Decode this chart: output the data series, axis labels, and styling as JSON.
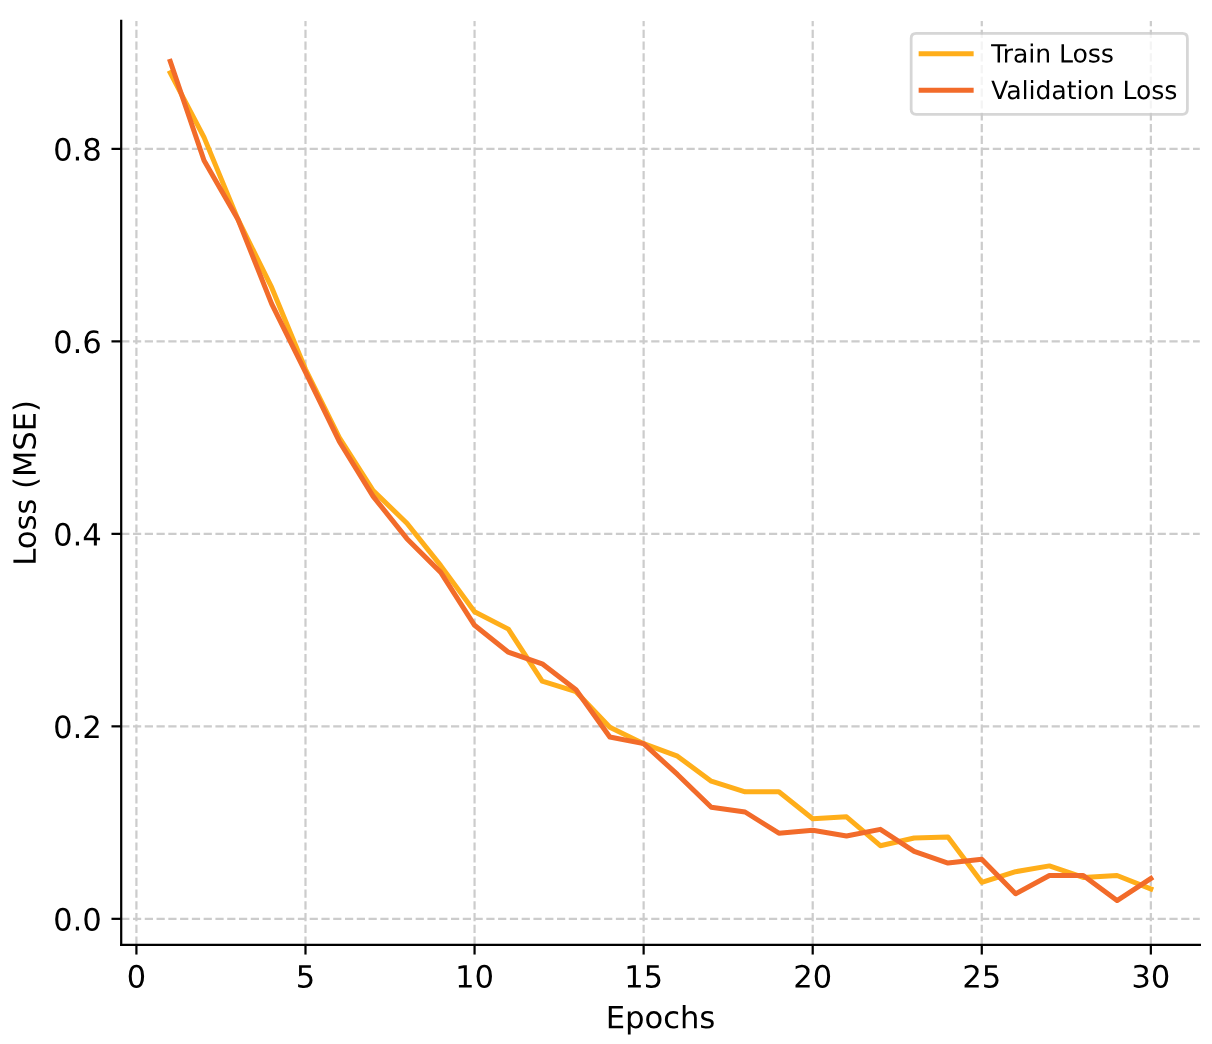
{
  "chart_data": {
    "type": "line",
    "xlabel": "Epochs",
    "ylabel": "Loss (MSE)",
    "x": [
      1,
      2,
      3,
      4,
      5,
      6,
      7,
      8,
      9,
      10,
      11,
      12,
      13,
      14,
      15,
      16,
      17,
      18,
      19,
      20,
      21,
      22,
      23,
      24,
      25,
      26,
      27,
      28,
      29,
      30
    ],
    "series": [
      {
        "name": "Train Loss",
        "color": "#ffae1a",
        "values": [
          0.879,
          0.812,
          0.727,
          0.656,
          0.571,
          0.5,
          0.445,
          0.411,
          0.367,
          0.319,
          0.301,
          0.247,
          0.236,
          0.199,
          0.182,
          0.169,
          0.143,
          0.132,
          0.132,
          0.104,
          0.106,
          0.076,
          0.084,
          0.085,
          0.038,
          0.049,
          0.055,
          0.043,
          0.045,
          0.031
        ]
      },
      {
        "name": "Validation Loss",
        "color": "#f26b2a",
        "values": [
          0.891,
          0.788,
          0.727,
          0.639,
          0.568,
          0.496,
          0.439,
          0.395,
          0.36,
          0.305,
          0.277,
          0.265,
          0.238,
          0.189,
          0.182,
          0.15,
          0.116,
          0.111,
          0.089,
          0.092,
          0.086,
          0.093,
          0.07,
          0.058,
          0.062,
          0.026,
          0.045,
          0.045,
          0.019,
          0.042
        ]
      }
    ],
    "xlim": [
      -0.45,
      31.45
    ],
    "ylim": [
      -0.027,
      0.933
    ],
    "xticks": [
      0,
      5,
      10,
      15,
      20,
      25,
      30
    ],
    "yticks": [
      {
        "value": 0,
        "label": "0.0"
      },
      {
        "value": 0.2,
        "label": "0.2"
      },
      {
        "value": 0.4,
        "label": "0.4"
      },
      {
        "value": 0.6,
        "label": "0.6"
      },
      {
        "value": 0.8,
        "label": "0.8"
      }
    ],
    "grid": true,
    "legend": "top right",
    "line_style": "solid",
    "marker": "none"
  }
}
